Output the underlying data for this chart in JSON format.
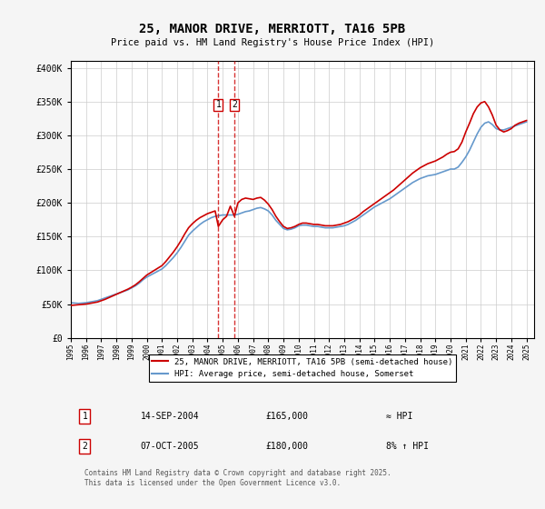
{
  "title": "25, MANOR DRIVE, MERRIOTT, TA16 5PB",
  "subtitle": "Price paid vs. HM Land Registry's House Price Index (HPI)",
  "legend_line1": "25, MANOR DRIVE, MERRIOTT, TA16 5PB (semi-detached house)",
  "legend_line2": "HPI: Average price, semi-detached house, Somerset",
  "footer": "Contains HM Land Registry data © Crown copyright and database right 2025.\nThis data is licensed under the Open Government Licence v3.0.",
  "transaction1": {
    "label": "1",
    "date": "14-SEP-2004",
    "price": "£165,000",
    "note": "≈ HPI",
    "year": 2004.71
  },
  "transaction2": {
    "label": "2",
    "date": "07-OCT-2005",
    "price": "£180,000",
    "note": "8% ↑ HPI",
    "year": 2005.77
  },
  "price_color": "#cc0000",
  "hpi_color": "#6699cc",
  "background_color": "#f5f5f5",
  "plot_bg_color": "#ffffff",
  "ylim": [
    0,
    410000
  ],
  "xlim_start": 1995.0,
  "xlim_end": 2025.5,
  "hpi_data": {
    "years": [
      1995.0,
      1995.25,
      1995.5,
      1995.75,
      1996.0,
      1996.25,
      1996.5,
      1996.75,
      1997.0,
      1997.25,
      1997.5,
      1997.75,
      1998.0,
      1998.25,
      1998.5,
      1998.75,
      1999.0,
      1999.25,
      1999.5,
      1999.75,
      2000.0,
      2000.25,
      2000.5,
      2000.75,
      2001.0,
      2001.25,
      2001.5,
      2001.75,
      2002.0,
      2002.25,
      2002.5,
      2002.75,
      2003.0,
      2003.25,
      2003.5,
      2003.75,
      2004.0,
      2004.25,
      2004.5,
      2004.75,
      2005.0,
      2005.25,
      2005.5,
      2005.75,
      2006.0,
      2006.25,
      2006.5,
      2006.75,
      2007.0,
      2007.25,
      2007.5,
      2007.75,
      2008.0,
      2008.25,
      2008.5,
      2008.75,
      2009.0,
      2009.25,
      2009.5,
      2009.75,
      2010.0,
      2010.25,
      2010.5,
      2010.75,
      2011.0,
      2011.25,
      2011.5,
      2011.75,
      2012.0,
      2012.25,
      2012.5,
      2012.75,
      2013.0,
      2013.25,
      2013.5,
      2013.75,
      2014.0,
      2014.25,
      2014.5,
      2014.75,
      2015.0,
      2015.25,
      2015.5,
      2015.75,
      2016.0,
      2016.25,
      2016.5,
      2016.75,
      2017.0,
      2017.25,
      2017.5,
      2017.75,
      2018.0,
      2018.25,
      2018.5,
      2018.75,
      2019.0,
      2019.25,
      2019.5,
      2019.75,
      2020.0,
      2020.25,
      2020.5,
      2020.75,
      2021.0,
      2021.25,
      2021.5,
      2021.75,
      2022.0,
      2022.25,
      2022.5,
      2022.75,
      2023.0,
      2023.25,
      2023.5,
      2023.75,
      2024.0,
      2024.25,
      2024.5,
      2024.75,
      2025.0
    ],
    "values": [
      52000,
      51500,
      51000,
      51500,
      52000,
      53000,
      54000,
      55000,
      57000,
      59000,
      61000,
      63000,
      65000,
      67000,
      69000,
      71000,
      74000,
      77000,
      81000,
      86000,
      90000,
      93000,
      96000,
      99000,
      102000,
      107000,
      113000,
      119000,
      126000,
      134000,
      143000,
      152000,
      158000,
      163000,
      168000,
      172000,
      175000,
      178000,
      180000,
      181000,
      182000,
      182000,
      182000,
      182000,
      183000,
      185000,
      187000,
      188000,
      190000,
      192000,
      193000,
      191000,
      188000,
      182000,
      174000,
      168000,
      162000,
      160000,
      161000,
      163000,
      166000,
      167000,
      167000,
      166000,
      165000,
      165000,
      164000,
      163000,
      163000,
      163000,
      164000,
      165000,
      166000,
      168000,
      171000,
      174000,
      178000,
      182000,
      186000,
      190000,
      194000,
      197000,
      200000,
      203000,
      206000,
      210000,
      214000,
      218000,
      222000,
      226000,
      230000,
      233000,
      236000,
      238000,
      240000,
      241000,
      242000,
      244000,
      246000,
      248000,
      250000,
      250000,
      253000,
      260000,
      268000,
      278000,
      290000,
      302000,
      312000,
      318000,
      320000,
      316000,
      310000,
      308000,
      308000,
      310000,
      312000,
      314000,
      316000,
      318000,
      320000
    ]
  },
  "price_data": {
    "years": [
      1995.0,
      1995.25,
      1995.5,
      1995.75,
      1996.0,
      1996.25,
      1996.5,
      1996.75,
      1997.0,
      1997.25,
      1997.5,
      1997.75,
      1998.0,
      1998.25,
      1998.5,
      1998.75,
      1999.0,
      1999.25,
      1999.5,
      1999.75,
      2000.0,
      2000.25,
      2000.5,
      2000.75,
      2001.0,
      2001.25,
      2001.5,
      2001.75,
      2002.0,
      2002.25,
      2002.5,
      2002.75,
      2003.0,
      2003.25,
      2003.5,
      2003.75,
      2004.0,
      2004.25,
      2004.5,
      2004.71,
      2005.0,
      2005.25,
      2005.5,
      2005.77,
      2006.0,
      2006.25,
      2006.5,
      2006.75,
      2007.0,
      2007.25,
      2007.5,
      2007.75,
      2008.0,
      2008.25,
      2008.5,
      2008.75,
      2009.0,
      2009.25,
      2009.5,
      2009.75,
      2010.0,
      2010.25,
      2010.5,
      2010.75,
      2011.0,
      2011.25,
      2011.5,
      2011.75,
      2012.0,
      2012.25,
      2012.5,
      2012.75,
      2013.0,
      2013.25,
      2013.5,
      2013.75,
      2014.0,
      2014.25,
      2014.5,
      2014.75,
      2015.0,
      2015.25,
      2015.5,
      2015.75,
      2016.0,
      2016.25,
      2016.5,
      2016.75,
      2017.0,
      2017.25,
      2017.5,
      2017.75,
      2018.0,
      2018.25,
      2018.5,
      2018.75,
      2019.0,
      2019.25,
      2019.5,
      2019.75,
      2020.0,
      2020.25,
      2020.5,
      2020.75,
      2021.0,
      2021.25,
      2021.5,
      2021.75,
      2022.0,
      2022.25,
      2022.5,
      2022.75,
      2023.0,
      2023.25,
      2023.5,
      2023.75,
      2024.0,
      2024.25,
      2024.5,
      2024.75,
      2025.0
    ],
    "values": [
      48000,
      48500,
      49000,
      49500,
      50000,
      51000,
      52000,
      53000,
      55000,
      57000,
      59500,
      62000,
      64500,
      67000,
      69500,
      72000,
      75000,
      78500,
      83000,
      88000,
      93000,
      96500,
      100000,
      103500,
      107000,
      113000,
      120000,
      127000,
      135000,
      144000,
      154000,
      163000,
      169000,
      174000,
      178000,
      181000,
      184000,
      186000,
      188000,
      165000,
      175000,
      180000,
      195000,
      180000,
      200000,
      205000,
      207000,
      206000,
      205000,
      207000,
      208000,
      204000,
      198000,
      190000,
      180000,
      172000,
      165000,
      162000,
      163000,
      165000,
      168000,
      170000,
      170000,
      169000,
      168000,
      168000,
      167000,
      166000,
      166000,
      166000,
      167000,
      168000,
      170000,
      172000,
      175000,
      178000,
      182000,
      187000,
      191000,
      195000,
      199000,
      203000,
      207000,
      211000,
      215000,
      219000,
      224000,
      229000,
      234000,
      239000,
      244000,
      248000,
      252000,
      255000,
      258000,
      260000,
      262000,
      265000,
      268000,
      272000,
      275000,
      276000,
      280000,
      290000,
      305000,
      318000,
      332000,
      342000,
      348000,
      350000,
      342000,
      330000,
      315000,
      308000,
      305000,
      307000,
      310000,
      315000,
      318000,
      320000,
      322000
    ]
  }
}
